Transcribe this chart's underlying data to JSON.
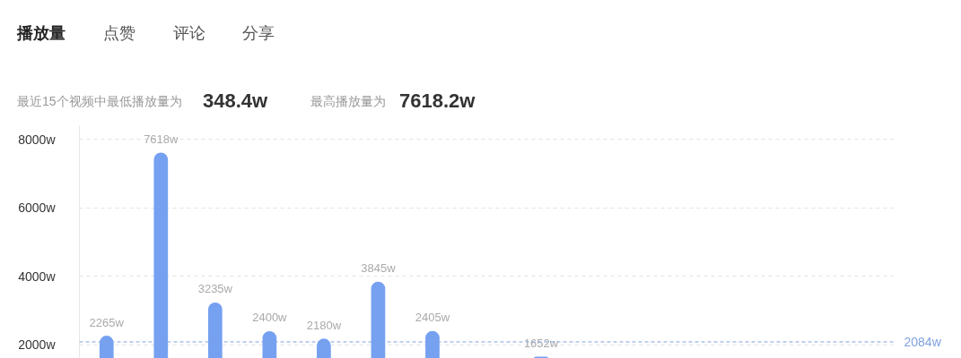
{
  "chart_data": {
    "type": "bar",
    "title": "播放量",
    "annotations": [
      "点赞",
      "评论",
      "分享",
      "最近15个视频中最低播放量为",
      "348.4w",
      "最高播放量为",
      "7618.2w"
    ],
    "categories": [
      null,
      null,
      null,
      null,
      null,
      null,
      null,
      null,
      null,
      null,
      null,
      null,
      null,
      null,
      null
    ],
    "values": [
      2265,
      7618,
      3235,
      2400,
      2180,
      3845,
      2405,
      null,
      1652,
      null,
      null,
      null,
      null,
      null,
      null
    ],
    "value_labels": [
      "2265w",
      "7618w",
      "3235w",
      "2400w",
      "2180w",
      "3845w",
      "2405w",
      null,
      "1652w",
      null,
      null,
      null,
      null,
      null,
      null
    ],
    "color": "#76a1f1",
    "ylim": [
      1600,
      8400
    ],
    "yticks": [
      {
        "value": 2000,
        "label": "2000w"
      },
      {
        "value": 4000,
        "label": "4000w"
      },
      {
        "value": 6000,
        "label": "6000w"
      },
      {
        "value": 8000,
        "label": "8000w"
      }
    ],
    "grid": "y",
    "tick_labels": "y",
    "ref_lines": [
      {
        "axis": "y",
        "value": 2084,
        "label": "2084w",
        "color": "#7fa2e0",
        "line_style": "dashed"
      }
    ]
  }
}
